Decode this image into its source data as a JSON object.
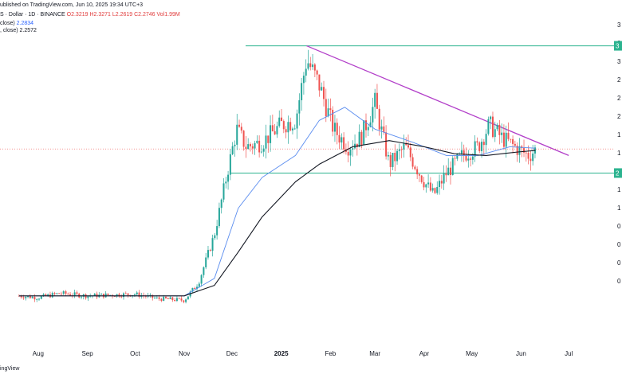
{
  "header": {
    "published": "ublished on TradingView.com, Jun 10, 2025 19:34 UTC+3",
    "symbol_line": "S · Dollar · 1D · BINANCE",
    "ohlc": "O2.3219  H2.3271  L2.2619  C2.2746  Vol1.99M",
    "ma1_label": "close)",
    "ma1_value": "2.2834",
    "ma2_label": ", close)",
    "ma2_value": "2.2572"
  },
  "footer": {
    "brand": "ingView"
  },
  "colors": {
    "up": "#26a69a",
    "down": "#ef5350",
    "ma_fast": "#5b8def",
    "ma_slow": "#131722",
    "trendline": "#b23fc9",
    "support": "#2bb38f",
    "price_line": "#ef5350"
  },
  "right_axis": {
    "tick_labels": [
      "3",
      "3",
      "3",
      "2",
      "2",
      "2",
      "1",
      "1",
      "1",
      "1",
      "1",
      "0",
      "0",
      "0",
      "0"
    ],
    "level_badges": [
      "3",
      "2"
    ]
  },
  "chart_data": {
    "type": "line",
    "title": "",
    "x_tick_labels": [
      "Aug",
      "Sep",
      "Oct",
      "Nov",
      "Dec",
      "2025",
      "Feb",
      "Mar",
      "Apr",
      "May",
      "Jun",
      "Jul"
    ],
    "x_tick_dates": [
      "2024-08-01",
      "2024-09-01",
      "2024-10-01",
      "2024-11-01",
      "2024-12-01",
      "2025-01-01",
      "2025-02-01",
      "2025-03-01",
      "2025-04-01",
      "2025-05-01",
      "2025-06-01",
      "2025-07-01"
    ],
    "bold_tick": "2025",
    "last_close": 2.2746,
    "grid": false,
    "series": [
      {
        "kind": "candles_close",
        "x": [
          "2024-07-20",
          "2024-08-01",
          "2024-08-15",
          "2024-09-01",
          "2024-09-15",
          "2024-10-01",
          "2024-10-15",
          "2024-11-01",
          "2024-11-10",
          "2024-11-20",
          "2024-11-28",
          "2024-12-04",
          "2024-12-10",
          "2024-12-20",
          "2025-01-01",
          "2025-01-10",
          "2025-01-17",
          "2025-01-25",
          "2025-02-03",
          "2025-02-12",
          "2025-02-20",
          "2025-03-01",
          "2025-03-10",
          "2025-03-20",
          "2025-04-01",
          "2025-04-07",
          "2025-04-15",
          "2025-04-25",
          "2025-05-05",
          "2025-05-12",
          "2025-05-20",
          "2025-06-01",
          "2025-06-06",
          "2025-06-10"
        ],
        "values": [
          0.6,
          0.58,
          0.63,
          0.6,
          0.61,
          0.62,
          0.57,
          0.55,
          0.75,
          1.3,
          2.0,
          2.5,
          2.3,
          2.35,
          2.55,
          2.6,
          3.3,
          3.0,
          2.5,
          2.3,
          2.4,
          2.8,
          2.1,
          2.3,
          1.9,
          1.75,
          2.0,
          2.2,
          2.3,
          2.55,
          2.4,
          2.25,
          2.2,
          2.27
        ]
      },
      {
        "name": "",
        "kind": "ma_fast",
        "x": [
          "2024-07-20",
          "2024-09-01",
          "2024-11-01",
          "2024-11-20",
          "2024-12-05",
          "2024-12-20",
          "2025-01-10",
          "2025-01-25",
          "2025-02-10",
          "2025-03-01",
          "2025-03-25",
          "2025-04-15",
          "2025-05-05",
          "2025-05-25",
          "2025-06-10"
        ],
        "values": [
          0.6,
          0.6,
          0.6,
          0.8,
          1.6,
          1.95,
          2.2,
          2.6,
          2.75,
          2.5,
          2.35,
          2.2,
          2.2,
          2.3,
          2.2834
        ]
      },
      {
        "name": "",
        "kind": "ma_slow",
        "x": [
          "2024-07-20",
          "2024-09-01",
          "2024-11-01",
          "2024-11-20",
          "2024-12-05",
          "2024-12-20",
          "2025-01-10",
          "2025-01-25",
          "2025-02-15",
          "2025-03-10",
          "2025-04-01",
          "2025-04-20",
          "2025-05-10",
          "2025-05-30",
          "2025-06-10"
        ],
        "values": [
          0.6,
          0.6,
          0.6,
          0.72,
          1.1,
          1.5,
          1.9,
          2.1,
          2.3,
          2.37,
          2.3,
          2.22,
          2.2,
          2.24,
          2.2572
        ]
      }
    ],
    "annotations": {
      "resistance_level": 3.45,
      "support_level": 2.0,
      "trendline_from": {
        "x": "2025-01-17",
        "y": 3.45
      },
      "trendline_to": {
        "x": "2025-07-01",
        "y": 2.2
      }
    }
  }
}
